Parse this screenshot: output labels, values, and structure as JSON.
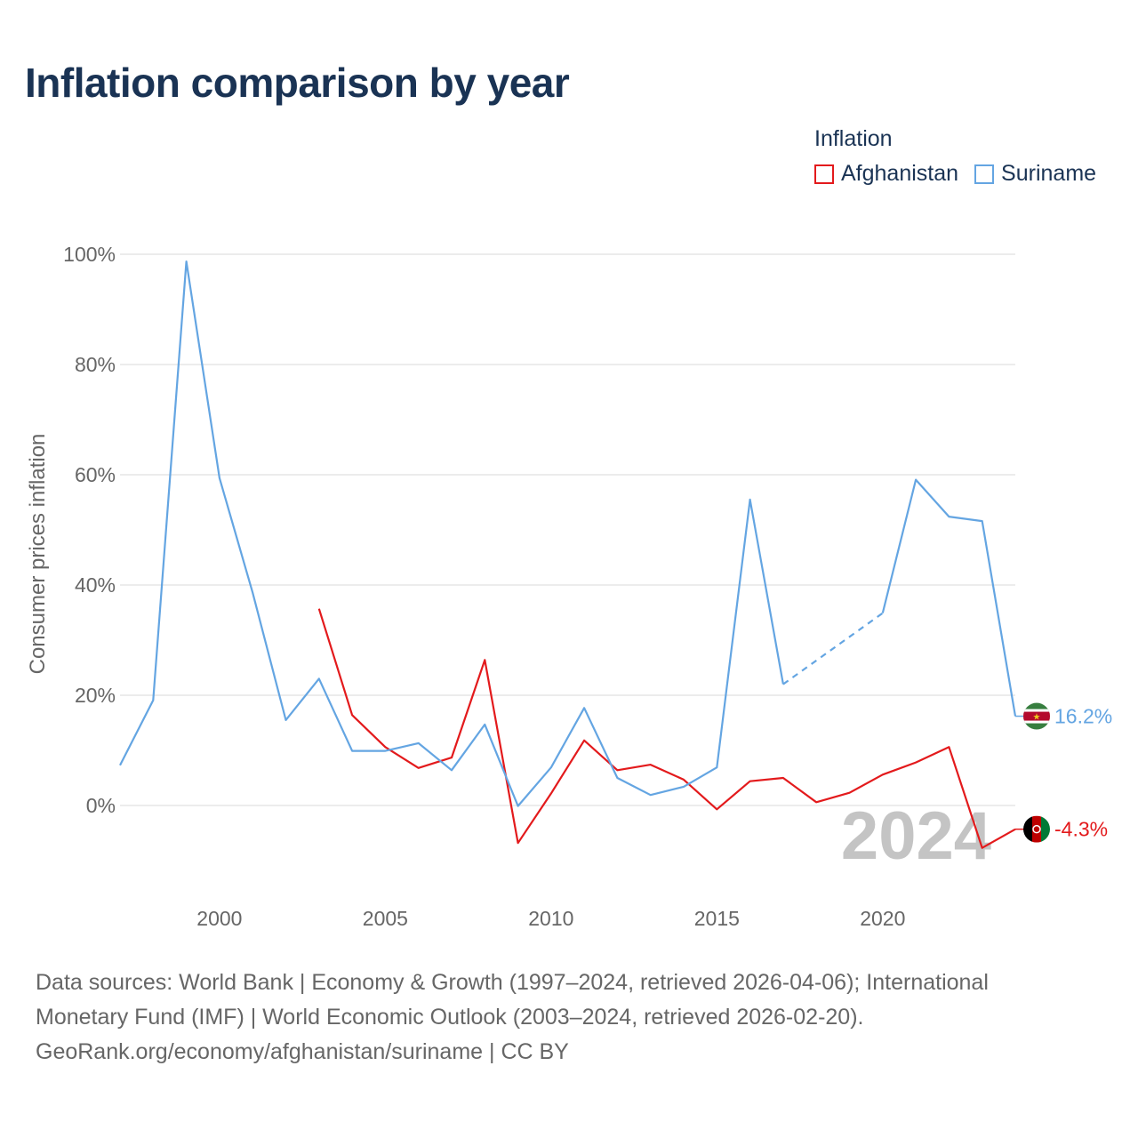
{
  "title": "Inflation comparison by year",
  "legend": {
    "title": "Inflation",
    "items": [
      {
        "label": "Afghanistan",
        "color": "#e31a1c"
      },
      {
        "label": "Suriname",
        "color": "#64a5e2"
      }
    ]
  },
  "source": {
    "line1": "Data sources: World Bank | Economy & Growth (1997–2024, retrieved 2026-04-06); International",
    "line2": "Monetary Fund (IMF) | World Economic Outlook (2003–2024, retrieved 2026-02-20).",
    "line3": "GeoRank.org/economy/afghanistan/suriname | CC BY"
  },
  "chart_data": {
    "type": "line",
    "title": "Inflation comparison by year",
    "xlabel": "",
    "ylabel": "Consumer prices inflation",
    "xlim": [
      1997,
      2024
    ],
    "ylim": [
      -10,
      100
    ],
    "yticks": [
      0,
      20,
      40,
      60,
      80,
      100
    ],
    "ytick_labels": [
      "0%",
      "20%",
      "40%",
      "60%",
      "80%",
      "100%"
    ],
    "xticks": [
      2000,
      2005,
      2010,
      2015,
      2020
    ],
    "xtick_labels": [
      "2000",
      "2005",
      "2010",
      "2015",
      "2020"
    ],
    "watermark_year": "2024",
    "series": [
      {
        "name": "Afghanistan",
        "color": "#e31a1c",
        "x": [
          2003,
          2004,
          2005,
          2006,
          2007,
          2008,
          2009,
          2010,
          2011,
          2012,
          2013,
          2014,
          2015,
          2016,
          2017,
          2018,
          2019,
          2020,
          2021,
          2022,
          2023,
          2024
        ],
        "y": [
          35.7,
          16.4,
          10.6,
          6.8,
          8.7,
          26.4,
          -6.8,
          2.2,
          11.8,
          6.4,
          7.4,
          4.7,
          -0.7,
          4.4,
          5.0,
          0.6,
          2.3,
          5.6,
          7.8,
          10.6,
          -7.7,
          -4.3
        ],
        "end_label": "-4.3%"
      },
      {
        "name": "Suriname",
        "color": "#64a5e2",
        "x": [
          1997,
          1998,
          1999,
          2000,
          2001,
          2002,
          2003,
          2004,
          2005,
          2006,
          2007,
          2008,
          2009,
          2010,
          2011,
          2012,
          2013,
          2014,
          2015,
          2016,
          2017,
          2020,
          2021,
          2022,
          2023,
          2024
        ],
        "y": [
          7.3,
          19.1,
          98.7,
          59.4,
          38.6,
          15.5,
          23.0,
          9.9,
          9.9,
          11.3,
          6.4,
          14.7,
          -0.1,
          6.9,
          17.7,
          5.0,
          1.9,
          3.4,
          6.9,
          55.5,
          22.0,
          34.9,
          59.1,
          52.4,
          51.6,
          16.2
        ],
        "dashed_from": 2017,
        "dashed_to": 2020,
        "end_label": "16.2%"
      }
    ]
  }
}
